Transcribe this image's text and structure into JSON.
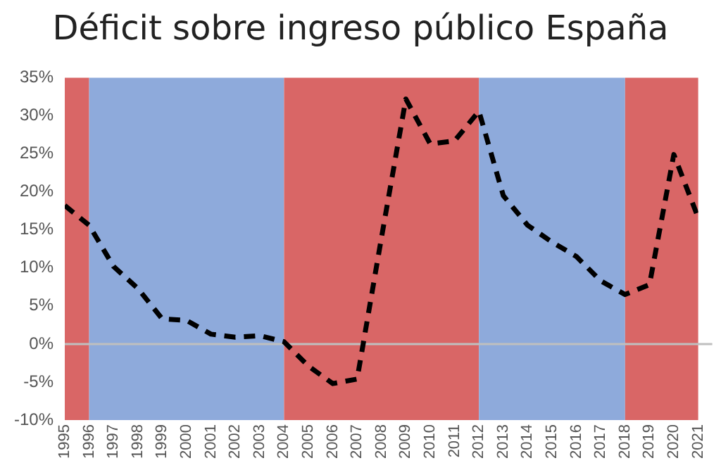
{
  "chart_data": {
    "type": "line",
    "title": "Déficit sobre ingreso público España",
    "x": [
      1995,
      1996,
      1997,
      1998,
      1999,
      2000,
      2001,
      2002,
      2003,
      2004,
      2005,
      2006,
      2007,
      2008,
      2009,
      2010,
      2011,
      2012,
      2013,
      2014,
      2015,
      2016,
      2017,
      2018,
      2019,
      2020,
      2021
    ],
    "series": [
      {
        "color": "#000000",
        "values": [
          18.2,
          15.6,
          10.2,
          7.3,
          3.3,
          3.1,
          1.3,
          0.9,
          1.1,
          0.3,
          -2.9,
          -5.2,
          -4.6,
          14,
          32.2,
          26.3,
          26.7,
          30.6,
          19.5,
          15.6,
          13.4,
          11.5,
          8.3,
          6.5,
          7.8,
          24.9,
          16.6
        ]
      }
    ],
    "xlim": [
      1995,
      2021
    ],
    "xticks": [
      1995,
      1996,
      1997,
      1998,
      1999,
      2000,
      2001,
      2002,
      2003,
      2004,
      2005,
      2006,
      2007,
      2008,
      2009,
      2010,
      2011,
      2012,
      2013,
      2014,
      2015,
      2016,
      2017,
      2018,
      2019,
      2020,
      2021
    ],
    "ylim": [
      -10,
      35
    ],
    "yticks": [
      {
        "value": -10,
        "label": "-10%"
      },
      {
        "value": -5,
        "label": "-5%"
      },
      {
        "value": 0,
        "label": "0%"
      },
      {
        "value": 5,
        "label": "5%"
      },
      {
        "value": 10,
        "label": "10%"
      },
      {
        "value": 15,
        "label": "15%"
      },
      {
        "value": 20,
        "label": "20%"
      },
      {
        "value": 25,
        "label": "25%"
      },
      {
        "value": 30,
        "label": "30%"
      },
      {
        "value": 35,
        "label": "35%"
      }
    ],
    "bands": [
      {
        "axis": "x",
        "from": 1995,
        "to": 1996,
        "color": "#d96666"
      },
      {
        "axis": "x",
        "from": 1996,
        "to": 2004,
        "color": "#8eaadb"
      },
      {
        "axis": "x",
        "from": 2004,
        "to": 2012,
        "color": "#d96666"
      },
      {
        "axis": "x",
        "from": 2012,
        "to": 2018,
        "color": "#8eaadb"
      },
      {
        "axis": "x",
        "from": 2018,
        "to": 2021,
        "color": "#d96666"
      }
    ],
    "ref_lines": [
      {
        "axis": "y",
        "value": 0,
        "color": "#bfbfbf"
      }
    ],
    "grid": false,
    "legend": false,
    "marker": "none",
    "line_style": "dashed"
  }
}
